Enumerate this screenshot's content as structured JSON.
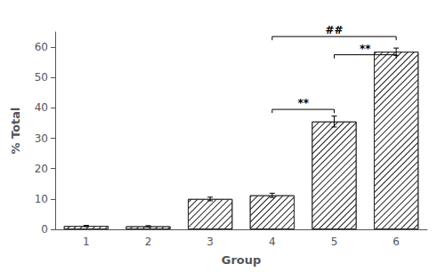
{
  "chart_data": {
    "type": "bar",
    "xlabel": "Group",
    "ylabel": "% Total",
    "categories": [
      "1",
      "2",
      "3",
      "4",
      "5",
      "6"
    ],
    "values": [
      1.1,
      1.0,
      10.0,
      11.2,
      35.5,
      58.5
    ],
    "errors": [
      0.2,
      0.2,
      0.6,
      0.7,
      1.8,
      1.2
    ],
    "color": "white",
    "ylim": [
      0,
      65
    ],
    "yticks": [
      0,
      10,
      20,
      30,
      40,
      50,
      60
    ],
    "grid": false,
    "annotations": [
      {
        "text": "**",
        "x1": "4",
        "x2": "5",
        "y": 39.5
      },
      {
        "text": "##",
        "x1": "4",
        "x2": "6",
        "y": 63.5
      },
      {
        "text": "**",
        "x1": "5",
        "x2": "6",
        "y": 57.5
      }
    ]
  }
}
